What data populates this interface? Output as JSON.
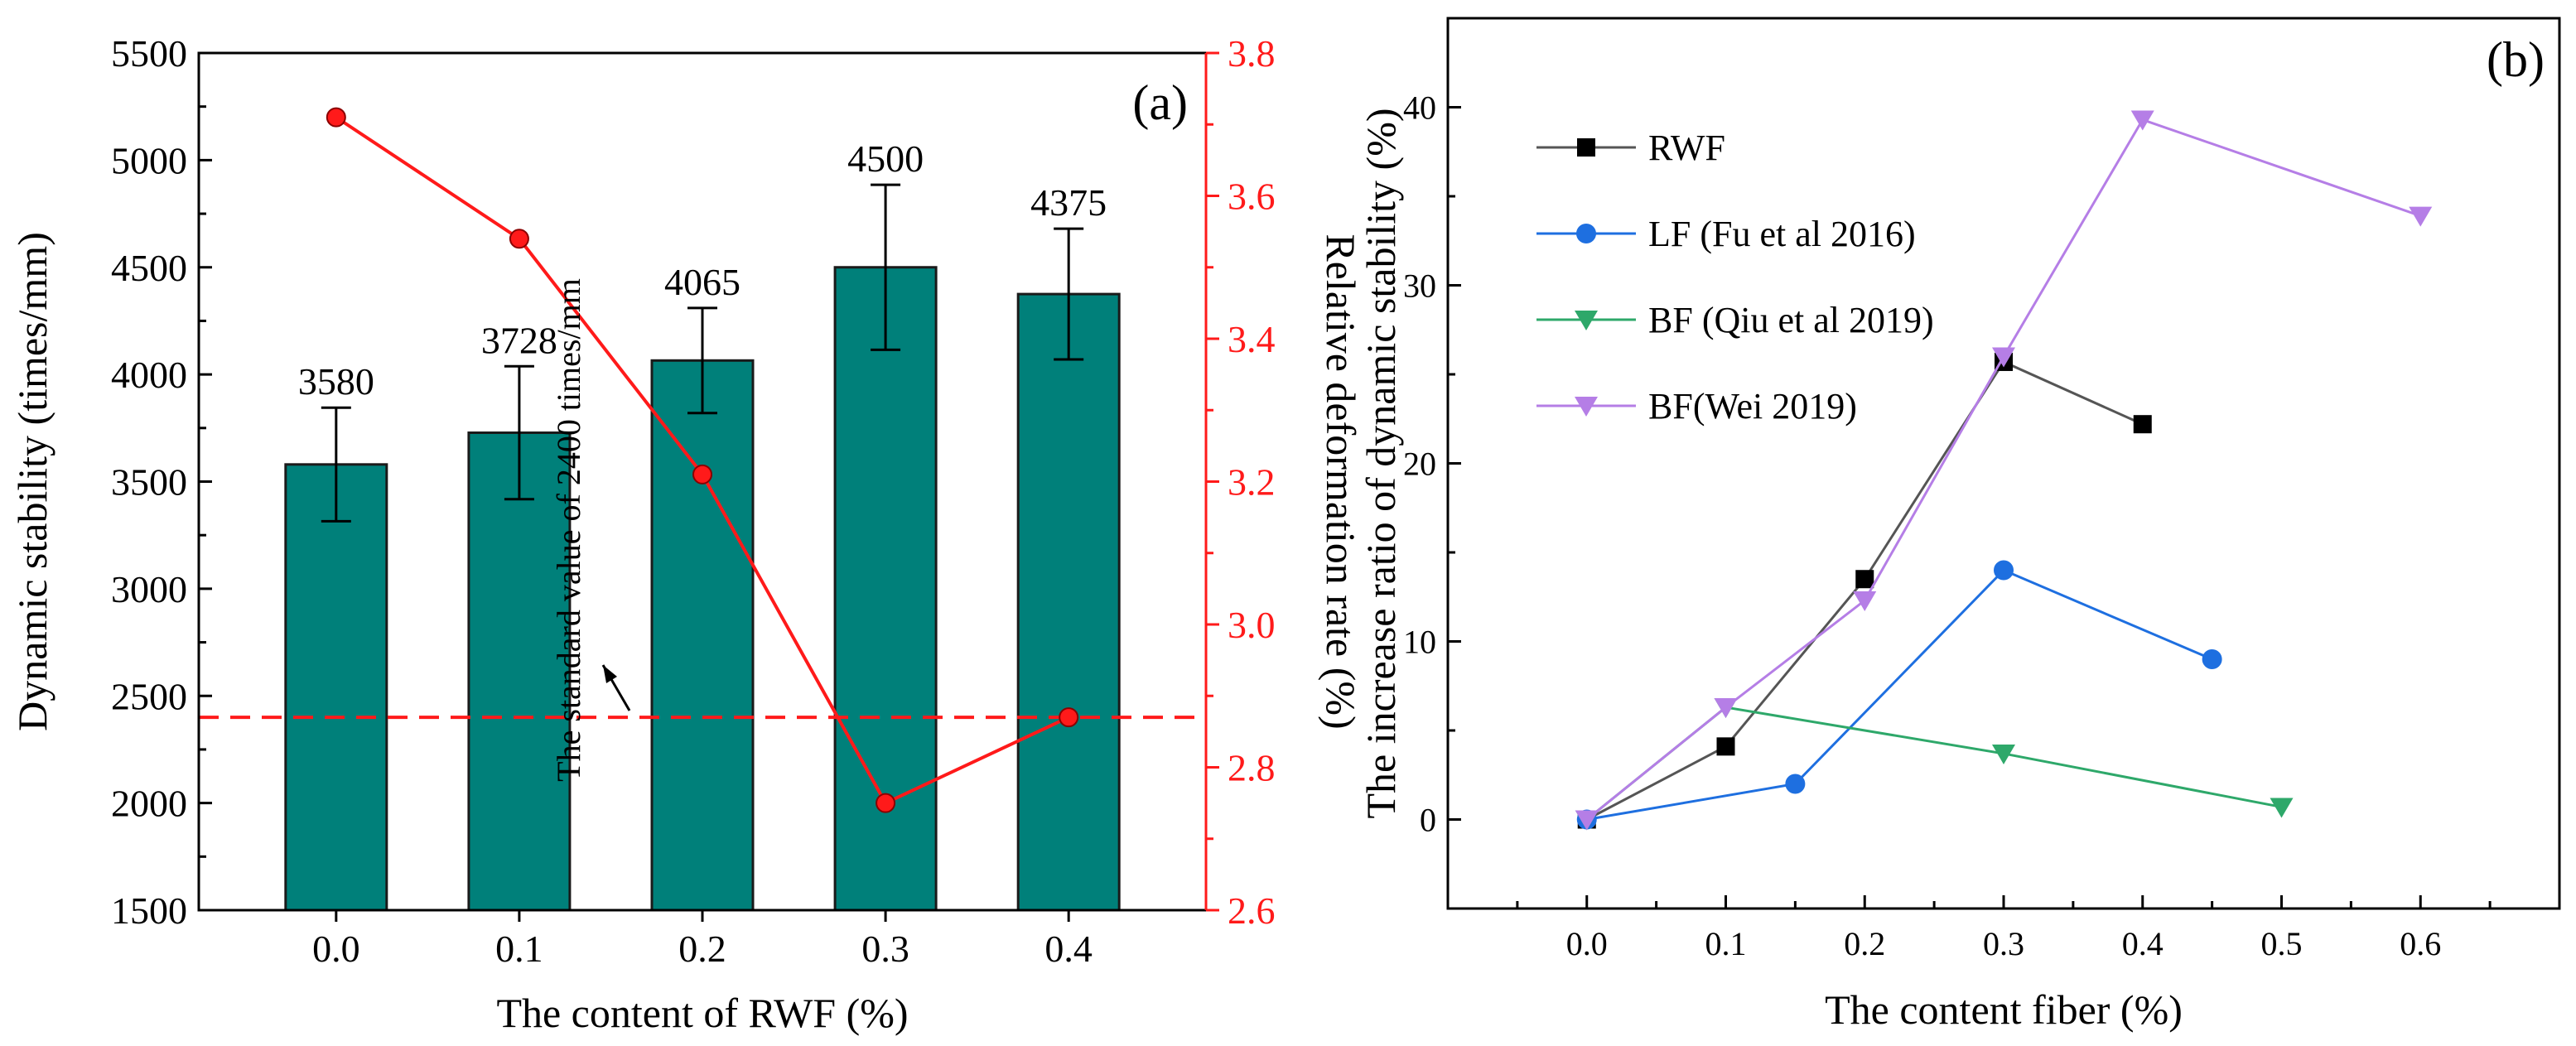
{
  "colors": {
    "bar": "#00807A",
    "bar_edge": "#1a1a1a",
    "red": "#FF1A1A",
    "rwf": "#000000",
    "lf": "#1E6FE0",
    "bf_qiu": "#2EA86A",
    "bf_wei": "#B57EE6",
    "axis": "#000000"
  },
  "chart_data": [
    {
      "panel": "(a)",
      "type": "bar",
      "xlabel": "The content of RWF (%)",
      "ylabel": "Dynamic stability (times/mm)",
      "y2label": "Relative deformation rate (%)",
      "categories": [
        "0.0",
        "0.1",
        "0.2",
        "0.3",
        "0.4"
      ],
      "values": [
        3580,
        3728,
        4065,
        4500,
        4375
      ],
      "value_labels": [
        "3580",
        "3728",
        "4065",
        "4500",
        "4375"
      ],
      "errors": [
        265,
        310,
        245,
        385,
        305
      ],
      "ylim": [
        1500,
        5500
      ],
      "yticks": [
        "1500",
        "2000",
        "2500",
        "3000",
        "3500",
        "4000",
        "4500",
        "5000",
        "5500"
      ],
      "y2lim": [
        2.6,
        3.8
      ],
      "y2ticks": [
        "2.6",
        "2.8",
        "3.0",
        "3.2",
        "3.4",
        "3.6",
        "3.8"
      ],
      "line_series": {
        "name": "Relative deformation rate",
        "axis": "right",
        "values": [
          3.71,
          3.54,
          3.21,
          2.75,
          2.87
        ]
      },
      "reference_line": {
        "value": 2400,
        "label": "The standard value of 2400 times/mm"
      }
    },
    {
      "panel": "(b)",
      "type": "line",
      "xlabel": "The content fiber (%)",
      "ylabel": "The increase ratio of dynamic stability (%)",
      "xlim": [
        -0.1,
        0.7
      ],
      "xticks": [
        "0.0",
        "0.1",
        "0.2",
        "0.3",
        "0.4",
        "0.5",
        "0.6"
      ],
      "ylim": [
        -5,
        45
      ],
      "yticks": [
        "0",
        "10",
        "20",
        "30",
        "40"
      ],
      "legend_position": "top-left",
      "series": [
        {
          "name": "RWF",
          "marker": "square",
          "x": [
            0,
            0.1,
            0.2,
            0.3,
            0.4
          ],
          "y": [
            0,
            4.1,
            13.5,
            25.7,
            22.2
          ]
        },
        {
          "name": "LF (Fu et al 2016)",
          "marker": "circle",
          "x": [
            0,
            0.15,
            0.3,
            0.45
          ],
          "y": [
            0,
            2.0,
            14.0,
            9.0
          ]
        },
        {
          "name": "BF (Qiu et al 2019)",
          "marker": "triangle-down",
          "x": [
            0,
            0.1,
            0.3,
            0.5
          ],
          "y": [
            0,
            6.3,
            3.7,
            0.7
          ]
        },
        {
          "name": "BF(Wei 2019)",
          "marker": "triangle-down",
          "x": [
            0,
            0.1,
            0.2,
            0.3,
            0.4,
            0.6
          ],
          "y": [
            0,
            6.3,
            12.3,
            26.0,
            39.3,
            33.9
          ]
        }
      ]
    }
  ]
}
